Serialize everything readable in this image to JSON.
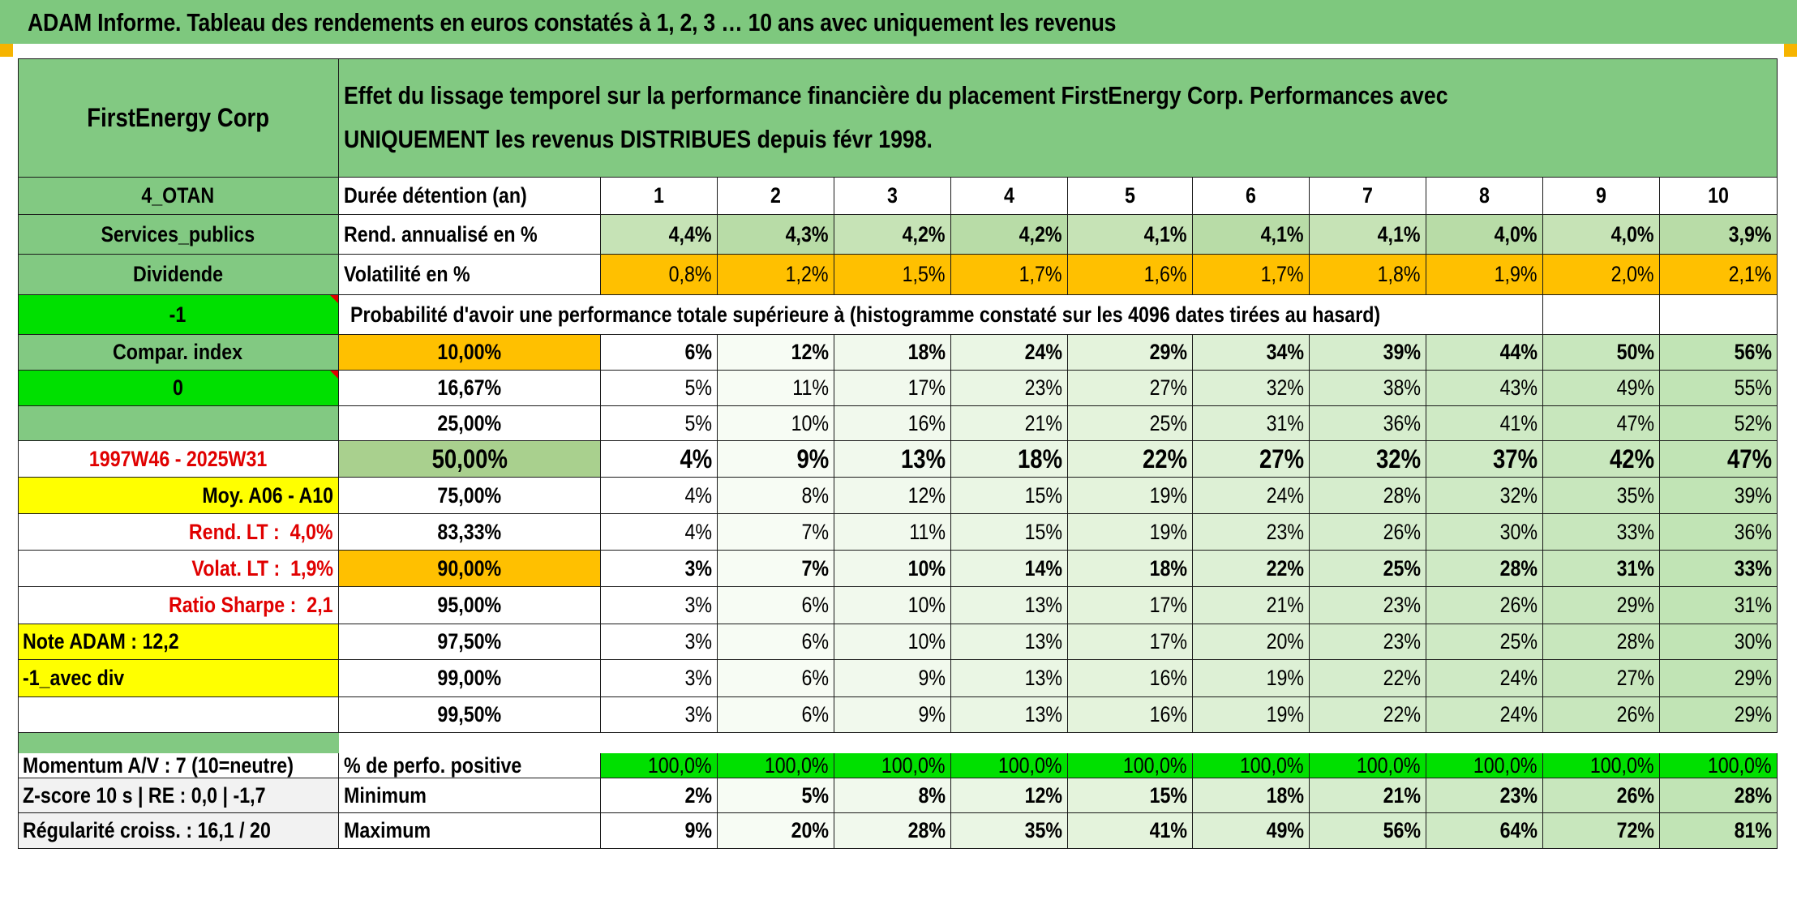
{
  "title": "ADAM Informe. Tableau des rendements en euros constatés à 1, 2, 3 … 10 ans avec uniquement les revenus",
  "colors": {
    "header_green": "#7ec87e",
    "label_green": "#82c982",
    "bright_green": "#00e000",
    "yellow": "#ffff00",
    "orange": "#ffc000",
    "light_green_1": "#c6e3b6",
    "light_green_2": "#aad79c",
    "red_text": "#e00000"
  },
  "side": {
    "name": "FirstEnergy Corp",
    "code": "4_OTAN",
    "sector": "Services_publics",
    "type": "Dividende",
    "value1": "-1",
    "compar_label": "Compar. index",
    "value2": "0",
    "period": "1997W46 - 2025W31",
    "moy": "Moy. A06 - A10",
    "rend_lt_label": "Rend. LT :",
    "rend_lt_value": "4,0%",
    "volat_lt_label": "Volat. LT :",
    "volat_lt_value": "1,9%",
    "sharpe_label": "Ratio Sharpe :",
    "sharpe_value": "2,1",
    "note": "Note ADAM : 12,2",
    "avec_div": "-1_avec div",
    "momentum": "Momentum A/V : 7 (10=neutre)",
    "zscore": "Z-score 10 s | RE : 0,0 | -1,7",
    "regularite": "Régularité croiss. : 16,1 / 20"
  },
  "header_text": "Effet du lissage temporel sur la performance financière du placement FirstEnergy Corp. Performances avec UNIQUEMENT les revenus DISTRIBUES depuis févr 1998.",
  "duree_label": "Durée détention (an)",
  "years": [
    "1",
    "2",
    "3",
    "4",
    "5",
    "6",
    "7",
    "8",
    "9",
    "10"
  ],
  "rend_label": "Rend. annualisé en %",
  "rend": [
    "4,4%",
    "4,3%",
    "4,2%",
    "4,2%",
    "4,1%",
    "4,1%",
    "4,1%",
    "4,0%",
    "4,0%",
    "3,9%"
  ],
  "vol_label": "Volatilité en %",
  "vol": [
    "0,8%",
    "1,2%",
    "1,5%",
    "1,7%",
    "1,6%",
    "1,7%",
    "1,8%",
    "1,9%",
    "2,0%",
    "2,1%"
  ],
  "prob_label": "Probabilité d'avoir une performance totale supérieure à (histogramme constaté sur les 4096 dates tirées au hasard)",
  "percentile_rows": [
    {
      "p": "10,00%",
      "v": [
        "6%",
        "12%",
        "18%",
        "24%",
        "29%",
        "34%",
        "39%",
        "44%",
        "50%",
        "56%"
      ]
    },
    {
      "p": "16,67%",
      "v": [
        "5%",
        "11%",
        "17%",
        "23%",
        "27%",
        "32%",
        "38%",
        "43%",
        "49%",
        "55%"
      ]
    },
    {
      "p": "25,00%",
      "v": [
        "5%",
        "10%",
        "16%",
        "21%",
        "25%",
        "31%",
        "36%",
        "41%",
        "47%",
        "52%"
      ]
    },
    {
      "p": "50,00%",
      "v": [
        "4%",
        "9%",
        "13%",
        "18%",
        "22%",
        "27%",
        "32%",
        "37%",
        "42%",
        "47%"
      ]
    },
    {
      "p": "75,00%",
      "v": [
        "4%",
        "8%",
        "12%",
        "15%",
        "19%",
        "24%",
        "28%",
        "32%",
        "35%",
        "39%"
      ]
    },
    {
      "p": "83,33%",
      "v": [
        "4%",
        "7%",
        "11%",
        "15%",
        "19%",
        "23%",
        "26%",
        "30%",
        "33%",
        "36%"
      ]
    },
    {
      "p": "90,00%",
      "v": [
        "3%",
        "7%",
        "10%",
        "14%",
        "18%",
        "22%",
        "25%",
        "28%",
        "31%",
        "33%"
      ]
    },
    {
      "p": "95,00%",
      "v": [
        "3%",
        "6%",
        "10%",
        "13%",
        "17%",
        "21%",
        "23%",
        "26%",
        "29%",
        "31%"
      ]
    },
    {
      "p": "97,50%",
      "v": [
        "3%",
        "6%",
        "10%",
        "13%",
        "17%",
        "20%",
        "23%",
        "25%",
        "28%",
        "30%"
      ]
    },
    {
      "p": "99,00%",
      "v": [
        "3%",
        "6%",
        "9%",
        "13%",
        "16%",
        "19%",
        "22%",
        "24%",
        "27%",
        "29%"
      ]
    },
    {
      "p": "99,50%",
      "v": [
        "3%",
        "6%",
        "9%",
        "13%",
        "16%",
        "19%",
        "22%",
        "24%",
        "26%",
        "29%"
      ]
    }
  ],
  "pos_label": "% de perfo. positive",
  "pos": [
    "100,0%",
    "100,0%",
    "100,0%",
    "100,0%",
    "100,0%",
    "100,0%",
    "100,0%",
    "100,0%",
    "100,0%",
    "100,0%"
  ],
  "min_label": "Minimum",
  "min": [
    "2%",
    "5%",
    "8%",
    "12%",
    "15%",
    "18%",
    "21%",
    "23%",
    "26%",
    "28%"
  ],
  "max_label": "Maximum",
  "max": [
    "9%",
    "20%",
    "28%",
    "35%",
    "41%",
    "49%",
    "56%",
    "64%",
    "72%",
    "81%"
  ]
}
